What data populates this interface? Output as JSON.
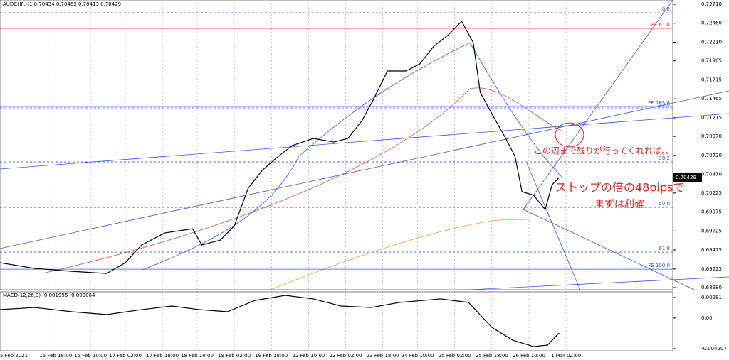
{
  "chart_data": {
    "type": "line",
    "title": "AUDCHF,H1  0.70434 0.70462 0.70413 0.70429",
    "color": "#000000",
    "x": [
      0,
      15,
      31,
      46,
      54,
      61,
      71,
      83,
      87,
      95,
      101,
      107,
      113,
      120,
      126,
      135,
      144,
      150,
      156,
      161,
      167,
      175,
      181,
      187,
      193,
      199,
      204,
      207,
      212,
      218,
      222,
      225,
      230,
      235,
      238,
      241
    ],
    "values": [
      0.69307,
      0.69232,
      0.69194,
      0.69166,
      0.69307,
      0.6954,
      0.69699,
      0.69755,
      0.6954,
      0.69606,
      0.69793,
      0.70288,
      0.70522,
      0.70709,
      0.70849,
      0.70943,
      0.70896,
      0.70943,
      0.71176,
      0.71457,
      0.71831,
      0.71831,
      0.71925,
      0.72158,
      0.72299,
      0.72486,
      0.72205,
      0.7155,
      0.7127,
      0.70943,
      0.70709,
      0.70242,
      0.70196,
      0.70008,
      0.70335,
      0.70429
    ],
    "xlim": [
      0,
      290
    ],
    "ylim": [
      0.68952,
      0.72766
    ],
    "yticks": [
      {
        "value": 0.7271,
        "label": "0.72710"
      },
      {
        "value": 0.7246,
        "label": "0.72460"
      },
      {
        "value": 0.7221,
        "label": "0.72210"
      },
      {
        "value": 0.71965,
        "label": "0.71965"
      },
      {
        "value": 0.71715,
        "label": "0.71715"
      },
      {
        "value": 0.71465,
        "label": "0.71465"
      },
      {
        "value": 0.71215,
        "label": "0.71215"
      },
      {
        "value": 0.7097,
        "label": "0.70970"
      },
      {
        "value": 0.7072,
        "label": "0.70720"
      },
      {
        "value": 0.7047,
        "label": "0.70470"
      },
      {
        "value": 0.70225,
        "label": "0.70225"
      },
      {
        "value": 0.69975,
        "label": "0.69975"
      },
      {
        "value": 0.69725,
        "label": "0.69725"
      },
      {
        "value": 0.69475,
        "label": "0.69475"
      },
      {
        "value": 0.69225,
        "label": "0.69225"
      },
      {
        "value": 0.6898,
        "label": "0.68980"
      }
    ],
    "xticks": [
      {
        "value": 6,
        "label": "5 Feb 2021"
      },
      {
        "value": 24,
        "label": "15 Feb 18:00"
      },
      {
        "value": 39,
        "label": "16 Feb 10:00"
      },
      {
        "value": 54,
        "label": "17 Feb 02:00"
      },
      {
        "value": 70,
        "label": "17 Feb 18:00"
      },
      {
        "value": 85,
        "label": "18 Feb 10:00"
      },
      {
        "value": 101,
        "label": "19 Feb 02:00"
      },
      {
        "value": 117,
        "label": "19 Feb 18:00"
      },
      {
        "value": 133,
        "label": "22 Feb 10:00"
      },
      {
        "value": 149,
        "label": "23 Feb 02:00"
      },
      {
        "value": 165,
        "label": "23 Feb 18:00"
      },
      {
        "value": 180,
        "label": "24 Feb 10:00"
      },
      {
        "value": 196,
        "label": "25 Feb 02:00"
      },
      {
        "value": 212,
        "label": "25 Feb 18:00"
      },
      {
        "value": 228,
        "label": "26 Feb 10:00"
      },
      {
        "value": 244,
        "label": "1 Mar 02:00"
      }
    ],
    "grid": true,
    "levels": [
      {
        "label": "0.0",
        "value": 0.72598,
        "color": "#3355dd",
        "dash": true
      },
      {
        "label": "FE 61.8",
        "value": 0.72392,
        "color": "#e03030",
        "dash": false
      },
      {
        "label": "FE 161.8",
        "value": 0.71364,
        "color": "#3355dd",
        "dash": false
      },
      {
        "label": "23.6",
        "value": 0.71345,
        "color": "#3355dd",
        "dash": true
      },
      {
        "label": "38.2",
        "value": 0.70634,
        "color": "#3355dd",
        "dash": true
      },
      {
        "label": "50.0",
        "value": 0.70036,
        "color": "#3355dd",
        "dash": true
      },
      {
        "label": "61.8",
        "value": 0.69447,
        "color": "#3355dd",
        "dash": true
      },
      {
        "label": "FE 100.0",
        "value": 0.69222,
        "color": "#3355dd",
        "dash": false
      }
    ],
    "annotations": [
      "この辺まで残りが行ってくれれば。。",
      "ストップの倍の48pipsで",
      "まずは利確"
    ],
    "macd": {
      "title": "MACD(12,26,9) -0.001996 -0.003064",
      "x": [
        0,
        15,
        31,
        46,
        61,
        74,
        86,
        98,
        110,
        123,
        135,
        147,
        160,
        172,
        190,
        202,
        212,
        221,
        230,
        236,
        241
      ],
      "values": [
        0.00115,
        0.00144,
        0.00086,
        0.00047,
        0.00115,
        0.00164,
        0.00115,
        0.00086,
        0.00242,
        0.0031,
        0.00262,
        0.00164,
        0.00144,
        0.00213,
        0.00262,
        0.00213,
        -0.00129,
        -0.00304,
        -0.00392,
        -0.00372,
        -0.00207
      ],
      "ylim": [
        -0.0045,
        0.00359
      ],
      "yticks": [
        {
          "value": 0.00281,
          "label": "0.00281"
        },
        {
          "value": 0,
          "label": "0.00"
        },
        {
          "value": -0.004207,
          "label": "-0.004207"
        }
      ]
    }
  }
}
